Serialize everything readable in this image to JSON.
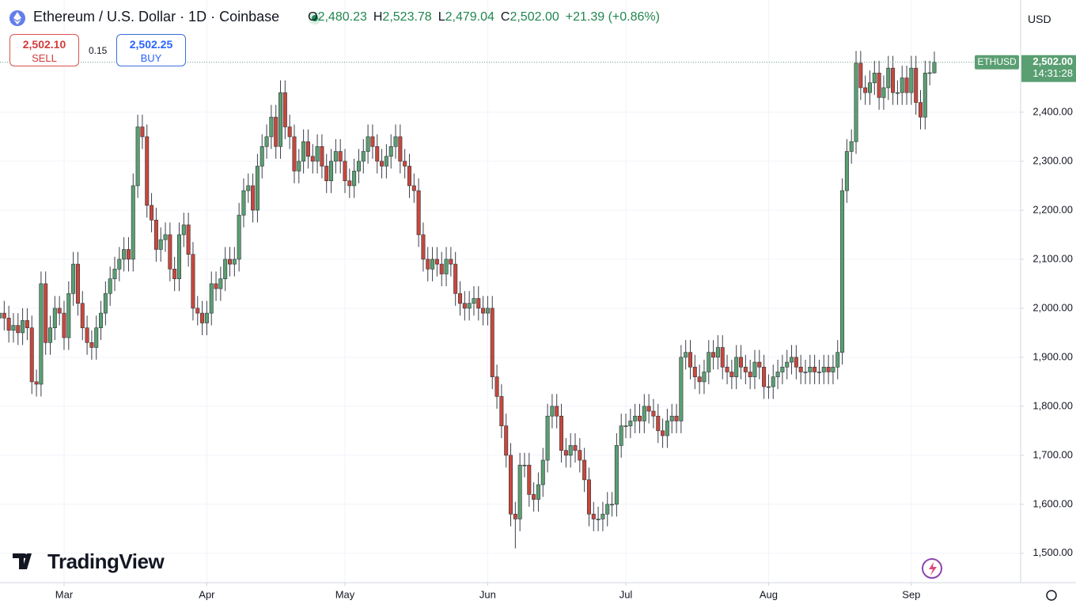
{
  "header": {
    "ohlc": [
      {
        "label": "O",
        "value": "2,480.23"
      },
      {
        "label": "H",
        "value": "2,523.78"
      },
      {
        "label": "L",
        "value": "2,479.04"
      },
      {
        "label": "C",
        "value": "2,502.00"
      }
    ],
    "change": "+21.39 (+0.86%)"
  },
  "trade": {
    "sell_price": "2,502.10",
    "sell": "SELL",
    "spread": "0.15",
    "buy_price": "2,502.25",
    "buy": "BUY"
  },
  "currency": "USD",
  "watermark": "TradingView",
  "chart_data": {
    "type": "candlestick",
    "title": "Ethereum / U.S. Dollar · 1D · Coinbase",
    "categories": [
      null,
      null,
      null,
      null,
      null,
      null,
      null,
      null,
      null,
      null,
      null,
      null,
      null,
      null,
      "Mar",
      null,
      null,
      null,
      null,
      null,
      null,
      null,
      null,
      null,
      null,
      null,
      null,
      null,
      null,
      null,
      null,
      null,
      null,
      null,
      null,
      null,
      null,
      null,
      null,
      null,
      null,
      null,
      null,
      null,
      null,
      "Apr",
      null,
      null,
      null,
      null,
      null,
      null,
      null,
      null,
      null,
      null,
      null,
      null,
      null,
      null,
      null,
      null,
      null,
      null,
      null,
      null,
      null,
      null,
      null,
      null,
      null,
      null,
      null,
      null,
      null,
      "May",
      null,
      null,
      null,
      null,
      null,
      null,
      null,
      null,
      null,
      null,
      null,
      null,
      null,
      null,
      null,
      null,
      null,
      null,
      null,
      null,
      null,
      null,
      null,
      null,
      null,
      null,
      null,
      null,
      null,
      null,
      "Jun",
      null,
      null,
      null,
      null,
      null,
      null,
      null,
      null,
      null,
      null,
      null,
      null,
      null,
      null,
      null,
      null,
      null,
      null,
      null,
      null,
      null,
      null,
      null,
      null,
      null,
      null,
      null,
      null,
      null,
      "Jul",
      null,
      null,
      null,
      null,
      null,
      null,
      null,
      null,
      null,
      null,
      null,
      null,
      null,
      null,
      null,
      null,
      null,
      null,
      null,
      null,
      null,
      null,
      null,
      null,
      null,
      null,
      null,
      null,
      null,
      null,
      "Aug",
      null,
      null,
      null,
      null,
      null,
      null,
      null,
      null,
      null,
      null,
      null,
      null,
      null,
      null,
      null,
      null,
      null,
      null,
      null,
      null,
      null,
      null,
      null,
      null,
      null,
      null,
      null,
      null,
      null,
      null,
      "Sep",
      null,
      null,
      null,
      null,
      null
    ],
    "open": [
      1980,
      1990,
      1980,
      1955,
      1965,
      1950,
      1975,
      1960,
      1850,
      1845,
      2050,
      1930,
      1960,
      2000,
      1990,
      1940,
      2030,
      2090,
      2010,
      1960,
      1930,
      1920,
      1960,
      1990,
      2030,
      2060,
      2080,
      2100,
      2120,
      2100,
      2250,
      2370,
      2350,
      2210,
      2180,
      2120,
      2140,
      2150,
      2080,
      2060,
      2150,
      2170,
      2110,
      2000,
      1990,
      1970,
      1990,
      2050,
      2040,
      2060,
      2100,
      2090,
      2100,
      2190,
      2240,
      2250,
      2200,
      2290,
      2330,
      2350,
      2390,
      2330,
      2440,
      2370,
      2350,
      2280,
      2300,
      2340,
      2310,
      2300,
      2330,
      2290,
      2260,
      2300,
      2320,
      2300,
      2260,
      2250,
      2280,
      2300,
      2320,
      2350,
      2330,
      2300,
      2290,
      2310,
      2330,
      2350,
      2300,
      2290,
      2250,
      2240,
      2150,
      2100,
      2080,
      2100,
      2090,
      2070,
      2100,
      2090,
      2030,
      2010,
      2000,
      2010,
      2020,
      2000,
      1990,
      2000,
      1860,
      1820,
      1760,
      1700,
      1580,
      1570,
      1680,
      1680,
      1620,
      1610,
      1640,
      1690,
      1780,
      1800,
      1780,
      1710,
      1700,
      1720,
      1710,
      1690,
      1650,
      1580,
      1570,
      1570,
      1580,
      1600,
      1600,
      1720,
      1760,
      1760,
      1770,
      1780,
      1770,
      1800,
      1790,
      1780,
      1750,
      1740,
      1770,
      1780,
      1770,
      1900,
      1910,
      1880,
      1860,
      1850,
      1870,
      1910,
      1900,
      1920,
      1880,
      1870,
      1860,
      1900,
      1880,
      1870,
      1860,
      1890,
      1880,
      1840,
      1840,
      1860,
      1870,
      1880,
      1890,
      1900,
      1880,
      1870,
      1870,
      1880,
      1870,
      1870,
      1880,
      1870,
      1880,
      1910,
      2240,
      2320,
      2340,
      2500,
      2450,
      2440,
      2460,
      2480,
      2430,
      2450,
      2490,
      2440,
      2440,
      2470,
      2440,
      2490,
      2420,
      2390,
      2480,
      2480.23
    ],
    "high": [
      2015,
      2015,
      2005,
      1990,
      1990,
      2000,
      2000,
      1985,
      1875,
      2075,
      2075,
      1985,
      2025,
      2025,
      2015,
      2055,
      2115,
      2115,
      2035,
      1985,
      1955,
      1985,
      2015,
      2055,
      2085,
      2105,
      2125,
      2145,
      2145,
      2275,
      2395,
      2395,
      2375,
      2235,
      2205,
      2165,
      2175,
      2175,
      2105,
      2175,
      2195,
      2195,
      2135,
      2025,
      2015,
      2015,
      2075,
      2075,
      2085,
      2125,
      2125,
      2125,
      2215,
      2265,
      2275,
      2275,
      2315,
      2355,
      2375,
      2415,
      2415,
      2465,
      2465,
      2395,
      2375,
      2325,
      2365,
      2365,
      2335,
      2355,
      2355,
      2315,
      2325,
      2345,
      2345,
      2325,
      2285,
      2305,
      2325,
      2345,
      2375,
      2375,
      2355,
      2325,
      2335,
      2355,
      2375,
      2375,
      2325,
      2315,
      2275,
      2265,
      2175,
      2125,
      2125,
      2125,
      2115,
      2125,
      2125,
      2115,
      2055,
      2035,
      2035,
      2045,
      2045,
      2025,
      2025,
      2025,
      1885,
      1845,
      1785,
      1725,
      1605,
      1705,
      1705,
      1705,
      1645,
      1665,
      1715,
      1805,
      1825,
      1825,
      1805,
      1735,
      1745,
      1745,
      1735,
      1715,
      1675,
      1605,
      1595,
      1605,
      1625,
      1625,
      1745,
      1785,
      1785,
      1795,
      1805,
      1805,
      1825,
      1825,
      1815,
      1805,
      1775,
      1795,
      1805,
      1805,
      1925,
      1935,
      1935,
      1905,
      1885,
      1895,
      1935,
      1935,
      1945,
      1945,
      1905,
      1895,
      1925,
      1925,
      1905,
      1895,
      1915,
      1915,
      1905,
      1865,
      1885,
      1895,
      1905,
      1915,
      1925,
      1925,
      1905,
      1895,
      1905,
      1905,
      1895,
      1905,
      1905,
      1905,
      1935,
      2265,
      2345,
      2365,
      2525,
      2525,
      2475,
      2485,
      2505,
      2505,
      2475,
      2515,
      2515,
      2465,
      2495,
      2495,
      2515,
      2515,
      2445,
      2505,
      2505,
      2523.78
    ],
    "low": [
      1955,
      1955,
      1930,
      1930,
      1925,
      1925,
      1935,
      1825,
      1820,
      1820,
      1905,
      1905,
      1935,
      1965,
      1915,
      1915,
      2005,
      1985,
      1935,
      1905,
      1895,
      1895,
      1935,
      1965,
      2005,
      2035,
      2055,
      2075,
      2075,
      2075,
      2225,
      2325,
      2185,
      2155,
      2095,
      2095,
      2115,
      2055,
      2035,
      2035,
      2125,
      2085,
      1975,
      1965,
      1945,
      1945,
      1965,
      2015,
      2015,
      2035,
      2065,
      2065,
      2075,
      2165,
      2215,
      2175,
      2175,
      2265,
      2305,
      2325,
      2305,
      2305,
      2345,
      2325,
      2255,
      2255,
      2275,
      2285,
      2275,
      2275,
      2265,
      2235,
      2235,
      2275,
      2275,
      2235,
      2225,
      2225,
      2255,
      2275,
      2295,
      2305,
      2275,
      2265,
      2265,
      2285,
      2305,
      2275,
      2265,
      2225,
      2215,
      2125,
      2075,
      2055,
      2055,
      2065,
      2045,
      2045,
      2065,
      2005,
      1985,
      1975,
      1975,
      1985,
      1975,
      1965,
      1965,
      1835,
      1795,
      1735,
      1675,
      1555,
      1510,
      1545,
      1655,
      1595,
      1585,
      1585,
      1615,
      1665,
      1755,
      1755,
      1685,
      1675,
      1675,
      1685,
      1665,
      1625,
      1555,
      1545,
      1545,
      1545,
      1555,
      1575,
      1575,
      1695,
      1735,
      1735,
      1745,
      1745,
      1745,
      1765,
      1755,
      1725,
      1715,
      1715,
      1745,
      1745,
      1745,
      1875,
      1855,
      1835,
      1825,
      1825,
      1845,
      1875,
      1875,
      1855,
      1845,
      1835,
      1835,
      1855,
      1845,
      1835,
      1835,
      1855,
      1815,
      1815,
      1815,
      1835,
      1845,
      1855,
      1865,
      1855,
      1845,
      1845,
      1845,
      1845,
      1845,
      1845,
      1845,
      1845,
      1855,
      1885,
      2215,
      2295,
      2315,
      2425,
      2415,
      2415,
      2435,
      2405,
      2405,
      2425,
      2415,
      2415,
      2415,
      2415,
      2415,
      2395,
      2365,
      2365,
      2455,
      2479.04
    ],
    "close": [
      1990,
      1980,
      1955,
      1965,
      1950,
      1975,
      1960,
      1850,
      1845,
      2050,
      1930,
      1960,
      2000,
      1990,
      1940,
      2030,
      2090,
      2010,
      1960,
      1930,
      1920,
      1960,
      1990,
      2030,
      2060,
      2080,
      2100,
      2120,
      2100,
      2250,
      2370,
      2350,
      2210,
      2180,
      2120,
      2140,
      2150,
      2080,
      2060,
      2150,
      2170,
      2110,
      2000,
      1990,
      1970,
      1990,
      2050,
      2040,
      2060,
      2100,
      2090,
      2100,
      2190,
      2240,
      2250,
      2200,
      2290,
      2330,
      2350,
      2390,
      2330,
      2440,
      2370,
      2350,
      2280,
      2300,
      2340,
      2310,
      2300,
      2330,
      2290,
      2260,
      2300,
      2320,
      2300,
      2260,
      2250,
      2280,
      2300,
      2320,
      2350,
      2330,
      2300,
      2290,
      2310,
      2330,
      2350,
      2300,
      2290,
      2250,
      2240,
      2150,
      2100,
      2080,
      2100,
      2090,
      2070,
      2100,
      2090,
      2030,
      2010,
      2000,
      2010,
      2020,
      2000,
      1990,
      2000,
      1860,
      1820,
      1760,
      1700,
      1580,
      1570,
      1680,
      1680,
      1620,
      1610,
      1640,
      1690,
      1780,
      1800,
      1780,
      1710,
      1700,
      1720,
      1710,
      1690,
      1650,
      1580,
      1570,
      1570,
      1580,
      1600,
      1600,
      1720,
      1760,
      1760,
      1770,
      1780,
      1770,
      1800,
      1790,
      1780,
      1750,
      1740,
      1770,
      1780,
      1770,
      1900,
      1910,
      1880,
      1860,
      1850,
      1870,
      1910,
      1900,
      1920,
      1880,
      1870,
      1860,
      1900,
      1880,
      1870,
      1860,
      1890,
      1880,
      1840,
      1840,
      1860,
      1870,
      1880,
      1890,
      1900,
      1880,
      1870,
      1870,
      1880,
      1870,
      1870,
      1880,
      1870,
      1880,
      1910,
      2240,
      2320,
      2340,
      2500,
      2450,
      2440,
      2460,
      2480,
      2430,
      2450,
      2490,
      2440,
      2440,
      2470,
      2440,
      2490,
      2420,
      2390,
      2480,
      2480.62,
      2502.0
    ],
    "up_color": "#5a9f72",
    "down_color": "#c8473d",
    "wick_color": "#3b3f4a",
    "ylim": [
      1440,
      2629
    ],
    "yticks": [
      {
        "value": 1500,
        "label": "1,500.00"
      },
      {
        "value": 1600,
        "label": "1,600.00"
      },
      {
        "value": 1700,
        "label": "1,700.00"
      },
      {
        "value": 1800,
        "label": "1,800.00"
      },
      {
        "value": 1900,
        "label": "1,900.00"
      },
      {
        "value": 2000,
        "label": "2,000.00"
      },
      {
        "value": 2100,
        "label": "2,100.00"
      },
      {
        "value": 2200,
        "label": "2,200.00"
      },
      {
        "value": 2300,
        "label": "2,300.00"
      },
      {
        "value": 2400,
        "label": "2,400.00"
      }
    ],
    "grid": true,
    "price_label": {
      "symbol": "ETHUSD",
      "price": "2,502.00",
      "countdown": "14:31:28"
    }
  }
}
